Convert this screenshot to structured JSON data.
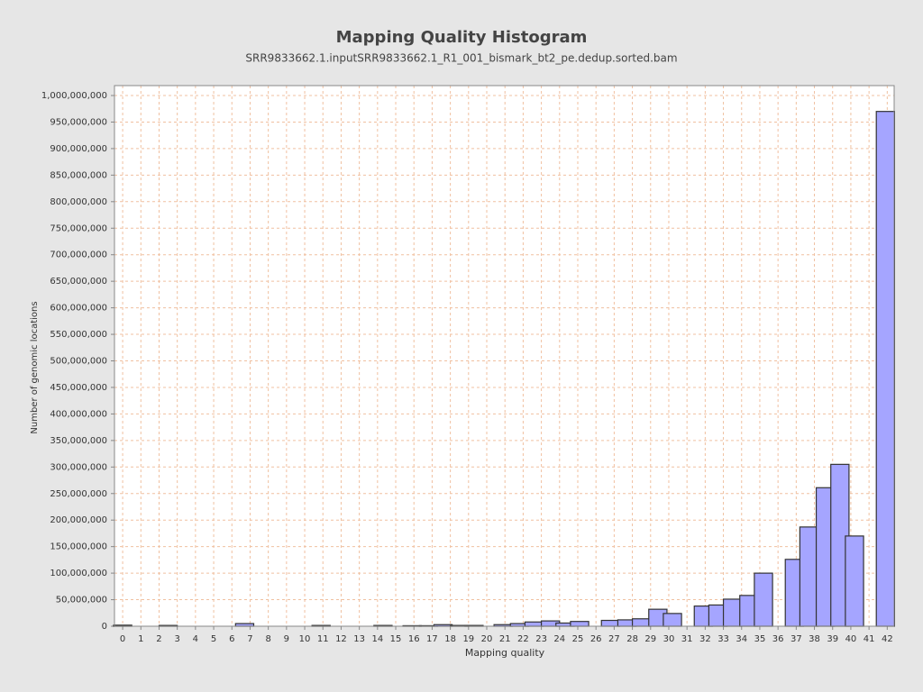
{
  "chart_data": {
    "type": "bar",
    "title": "Mapping Quality Histogram",
    "subtitle": "SRR9833662.1.inputSRR9833662.1_R1_001_bismark_bt2_pe.dedup.sorted.bam",
    "x_label": "Mapping quality",
    "y_label": "Number of genomic locations",
    "x": [
      0.0,
      2.5,
      6.7,
      10.9,
      14.3,
      15.9,
      16.8,
      17.6,
      18.5,
      19.3,
      20.9,
      21.8,
      22.6,
      23.5,
      24.3,
      25.1,
      26.8,
      27.7,
      28.5,
      29.4,
      30.2,
      31.9,
      32.7,
      33.5,
      34.4,
      35.2,
      36.9,
      37.7,
      38.6,
      39.4,
      40.2,
      41.9
    ],
    "values": [
      2000000,
      1500000,
      5000000,
      1500000,
      1500000,
      1000000,
      1000000,
      3000000,
      1500000,
      1500000,
      3000000,
      5000000,
      8000000,
      10000000,
      6000000,
      9000000,
      11000000,
      12000000,
      14000000,
      32000000,
      24000000,
      38000000,
      40000000,
      51000000,
      58000000,
      100000000,
      126000000,
      187000000,
      261000000,
      305000000,
      170000000,
      970000000
    ],
    "color": "#a5a5ff",
    "xlim": [
      -0.45,
      42.38
    ],
    "xticks": [
      0,
      1,
      2,
      3,
      4,
      5,
      6,
      7,
      8,
      9,
      10,
      11,
      12,
      13,
      14,
      15,
      16,
      17,
      18,
      19,
      20,
      21,
      22,
      23,
      24,
      25,
      26,
      27,
      28,
      29,
      30,
      31,
      32,
      33,
      34,
      35,
      36,
      37,
      38,
      39,
      40,
      41,
      42
    ],
    "ylim": [
      0,
      1018700000
    ],
    "yticks": [
      0,
      {
        "value": 50000000,
        "label": "50,000,000"
      },
      {
        "value": 100000000,
        "label": "100,000,000"
      },
      {
        "value": 150000000,
        "label": "150,000,000"
      },
      {
        "value": 200000000,
        "label": "200,000,000"
      },
      {
        "value": 250000000,
        "label": "250,000,000"
      },
      {
        "value": 300000000,
        "label": "300,000,000"
      },
      {
        "value": 350000000,
        "label": "350,000,000"
      },
      {
        "value": 400000000,
        "label": "400,000,000"
      },
      {
        "value": 450000000,
        "label": "450,000,000"
      },
      {
        "value": 500000000,
        "label": "500,000,000"
      },
      {
        "value": 550000000,
        "label": "550,000,000"
      },
      {
        "value": 600000000,
        "label": "600,000,000"
      },
      {
        "value": 650000000,
        "label": "650,000,000"
      },
      {
        "value": 700000000,
        "label": "700,000,000"
      },
      {
        "value": 750000000,
        "label": "750,000,000"
      },
      {
        "value": 800000000,
        "label": "800,000,000"
      },
      {
        "value": 850000000,
        "label": "850,000,000"
      },
      {
        "value": 900000000,
        "label": "900,000,000"
      },
      {
        "value": 950000000,
        "label": "950,000,000"
      },
      {
        "value": 1000000000,
        "label": "1,000,000,000"
      }
    ],
    "grid": true
  }
}
